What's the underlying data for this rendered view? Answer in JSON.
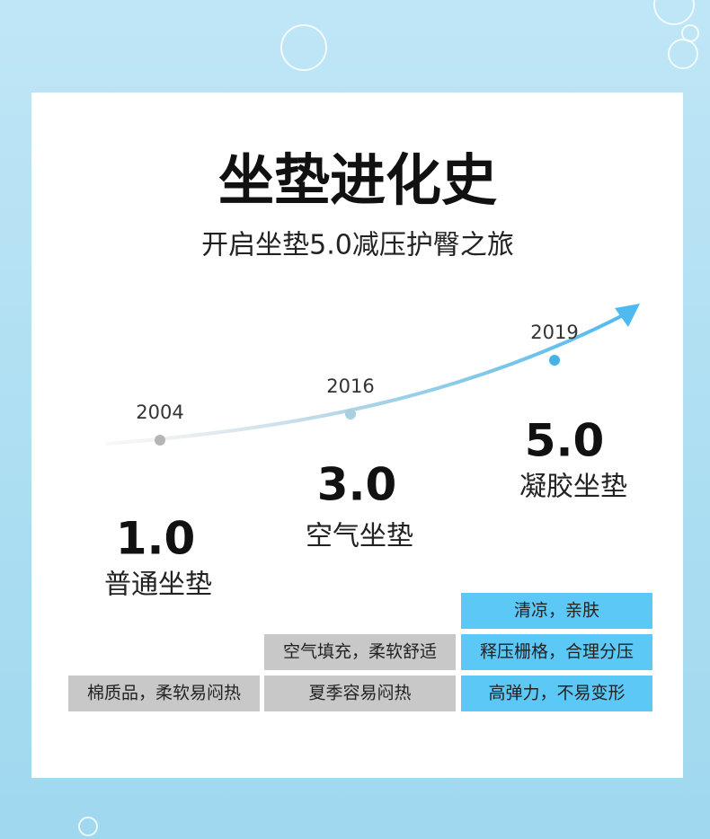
{
  "title": "坐垫进化史",
  "subtitle": "开启坐垫5.0减压护臀之旅",
  "stages": [
    {
      "year": "2004",
      "version": "1.0",
      "name": "普通坐垫",
      "features": [
        "棉质品，柔软易闷热"
      ]
    },
    {
      "year": "2016",
      "version": "3.0",
      "name": "空气坐垫",
      "features": [
        "空气填充，柔软舒适",
        "夏季容易闷热"
      ]
    },
    {
      "year": "2019",
      "version": "5.0",
      "name": "凝胶坐垫",
      "features": [
        "清凉，亲肤",
        "释压栅格，合理分压",
        "高弹力，不易变形"
      ]
    }
  ]
}
